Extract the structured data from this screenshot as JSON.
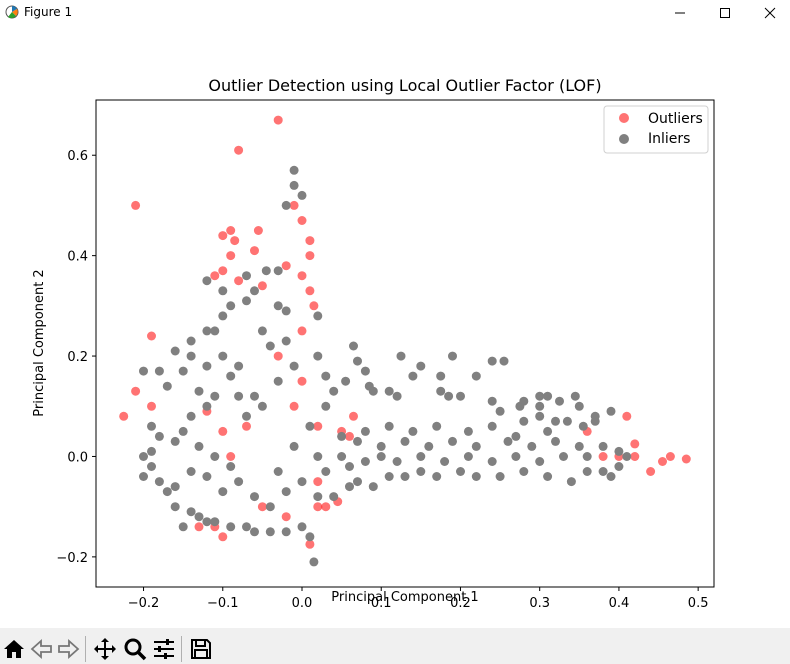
{
  "window": {
    "title": "Figure 1"
  },
  "toolbar": {
    "tools": [
      "home-icon",
      "back-icon",
      "forward-icon",
      "pan-icon",
      "zoom-icon",
      "configure-subplots-icon",
      "save-icon"
    ]
  },
  "colors": {
    "outliers": "#ff0000",
    "inliers": "#808080"
  },
  "chart_data": {
    "type": "scatter",
    "title": "Outlier Detection using Local Outlier Factor (LOF)",
    "xlabel": "Principal Component 1",
    "ylabel": "Principal Component 2",
    "xlim": [
      -0.26,
      0.52
    ],
    "ylim": [
      -0.26,
      0.71
    ],
    "xticks": [
      "−0.2",
      "−0.1",
      "0.0",
      "0.1",
      "0.2",
      "0.3",
      "0.4",
      "0.5"
    ],
    "xtick_values": [
      -0.2,
      -0.1,
      0.0,
      0.1,
      0.2,
      0.3,
      0.4,
      0.5
    ],
    "yticks": [
      "−0.2",
      "0.0",
      "0.2",
      "0.4",
      "0.6"
    ],
    "ytick_values": [
      -0.2,
      0.0,
      0.2,
      0.4,
      0.6
    ],
    "grid": false,
    "legend": {
      "placement": "top-right",
      "entries": [
        "Outliers",
        "Inliers"
      ]
    },
    "series": [
      {
        "name": "Outliers",
        "color": "#ff0000",
        "alpha": 0.55,
        "points": [
          [
            -0.03,
            0.67
          ],
          [
            -0.08,
            0.61
          ],
          [
            -0.21,
            0.5
          ],
          [
            -0.09,
            0.45
          ],
          [
            -0.1,
            0.44
          ],
          [
            -0.085,
            0.43
          ],
          [
            -0.055,
            0.45
          ],
          [
            -0.06,
            0.41
          ],
          [
            -0.09,
            0.4
          ],
          [
            -0.01,
            0.5
          ],
          [
            0.0,
            0.47
          ],
          [
            0.01,
            0.43
          ],
          [
            0.01,
            0.4
          ],
          [
            -0.1,
            0.37
          ],
          [
            -0.11,
            0.36
          ],
          [
            -0.08,
            0.35
          ],
          [
            -0.05,
            0.34
          ],
          [
            -0.02,
            0.38
          ],
          [
            0.0,
            0.36
          ],
          [
            0.01,
            0.33
          ],
          [
            0.015,
            0.3
          ],
          [
            -0.19,
            0.24
          ],
          [
            -0.21,
            0.13
          ],
          [
            -0.19,
            0.1
          ],
          [
            -0.225,
            0.08
          ],
          [
            -0.12,
            0.09
          ],
          [
            -0.07,
            0.06
          ],
          [
            0.02,
            0.06
          ],
          [
            0.06,
            0.04
          ],
          [
            0.065,
            0.08
          ],
          [
            0.41,
            0.08
          ],
          [
            0.42,
            0.025
          ],
          [
            0.42,
            0.0
          ],
          [
            0.44,
            -0.03
          ],
          [
            0.455,
            -0.01
          ],
          [
            0.465,
            0.0
          ],
          [
            0.485,
            -0.005
          ],
          [
            0.36,
            0.05
          ],
          [
            0.38,
            0.0
          ],
          [
            0.4,
            0.0
          ],
          [
            -0.11,
            -0.14
          ],
          [
            -0.13,
            -0.14
          ],
          [
            -0.1,
            -0.16
          ],
          [
            0.01,
            -0.175
          ],
          [
            0.02,
            -0.1
          ],
          [
            0.03,
            -0.1
          ],
          [
            0.045,
            -0.09
          ],
          [
            -0.02,
            -0.12
          ],
          [
            -0.05,
            -0.1
          ],
          [
            0.0,
            0.25
          ],
          [
            0.05,
            0.05
          ],
          [
            -0.1,
            0.05
          ],
          [
            -0.09,
            0.0
          ],
          [
            0.02,
            -0.05
          ],
          [
            -0.03,
            0.2
          ],
          [
            0.0,
            0.15
          ],
          [
            -0.01,
            0.1
          ]
        ]
      },
      {
        "name": "Inliers",
        "color": "#808080",
        "alpha": 1,
        "points": [
          [
            -0.01,
            0.57
          ],
          [
            -0.01,
            0.54
          ],
          [
            0.0,
            0.52
          ],
          [
            -0.02,
            0.5
          ],
          [
            -0.03,
            0.37
          ],
          [
            -0.045,
            0.37
          ],
          [
            -0.07,
            0.36
          ],
          [
            -0.1,
            0.33
          ],
          [
            -0.12,
            0.35
          ],
          [
            -0.06,
            0.33
          ],
          [
            -0.07,
            0.31
          ],
          [
            -0.09,
            0.3
          ],
          [
            -0.1,
            0.28
          ],
          [
            -0.03,
            0.3
          ],
          [
            -0.02,
            0.29
          ],
          [
            0.02,
            0.28
          ],
          [
            -0.11,
            0.25
          ],
          [
            -0.12,
            0.25
          ],
          [
            -0.14,
            0.23
          ],
          [
            -0.16,
            0.21
          ],
          [
            -0.14,
            0.2
          ],
          [
            -0.2,
            0.17
          ],
          [
            -0.18,
            0.17
          ],
          [
            -0.15,
            0.17
          ],
          [
            -0.12,
            0.18
          ],
          [
            -0.1,
            0.2
          ],
          [
            0.065,
            0.22
          ],
          [
            0.07,
            0.19
          ],
          [
            0.08,
            0.17
          ],
          [
            0.125,
            0.2
          ],
          [
            0.15,
            0.18
          ],
          [
            0.19,
            0.2
          ],
          [
            0.24,
            0.19
          ],
          [
            0.255,
            0.19
          ],
          [
            0.14,
            0.16
          ],
          [
            0.175,
            0.16
          ],
          [
            0.22,
            0.16
          ],
          [
            0.055,
            0.15
          ],
          [
            0.085,
            0.14
          ],
          [
            -0.17,
            0.14
          ],
          [
            -0.13,
            0.13
          ],
          [
            0.09,
            0.13
          ],
          [
            0.11,
            0.13
          ],
          [
            0.12,
            0.12
          ],
          [
            0.175,
            0.13
          ],
          [
            0.185,
            0.12
          ],
          [
            0.2,
            0.12
          ],
          [
            0.24,
            0.11
          ],
          [
            0.25,
            0.09
          ],
          [
            0.3,
            0.12
          ],
          [
            0.31,
            0.12
          ],
          [
            0.345,
            0.12
          ],
          [
            0.28,
            0.11
          ],
          [
            0.275,
            0.1
          ],
          [
            0.3,
            0.1
          ],
          [
            0.325,
            0.11
          ],
          [
            0.35,
            0.1
          ],
          [
            0.39,
            0.09
          ],
          [
            0.37,
            0.08
          ],
          [
            0.37,
            0.07
          ],
          [
            0.28,
            0.07
          ],
          [
            0.3,
            0.08
          ],
          [
            0.31,
            0.05
          ],
          [
            0.32,
            0.07
          ],
          [
            0.335,
            0.07
          ],
          [
            0.355,
            0.06
          ],
          [
            -0.19,
            0.06
          ],
          [
            -0.18,
            0.04
          ],
          [
            -0.19,
            0.01
          ],
          [
            -0.2,
            0.0
          ],
          [
            -0.19,
            -0.02
          ],
          [
            -0.2,
            -0.04
          ],
          [
            -0.18,
            -0.05
          ],
          [
            -0.16,
            -0.06
          ],
          [
            -0.17,
            -0.07
          ],
          [
            -0.16,
            -0.1
          ],
          [
            -0.14,
            -0.11
          ],
          [
            -0.15,
            -0.14
          ],
          [
            -0.13,
            -0.12
          ],
          [
            -0.12,
            -0.13
          ],
          [
            -0.11,
            -0.13
          ],
          [
            -0.09,
            -0.14
          ],
          [
            -0.07,
            -0.14
          ],
          [
            -0.06,
            -0.15
          ],
          [
            -0.04,
            -0.15
          ],
          [
            -0.02,
            -0.15
          ],
          [
            0.0,
            -0.14
          ],
          [
            0.01,
            -0.16
          ],
          [
            0.015,
            -0.21
          ],
          [
            0.02,
            -0.08
          ],
          [
            0.04,
            -0.08
          ],
          [
            0.06,
            -0.06
          ],
          [
            0.07,
            -0.05
          ],
          [
            0.09,
            -0.06
          ],
          [
            0.11,
            -0.04
          ],
          [
            0.13,
            -0.04
          ],
          [
            0.15,
            -0.03
          ],
          [
            0.17,
            -0.04
          ],
          [
            0.2,
            -0.03
          ],
          [
            0.22,
            -0.04
          ],
          [
            0.25,
            -0.04
          ],
          [
            0.28,
            -0.03
          ],
          [
            0.31,
            -0.04
          ],
          [
            0.34,
            -0.05
          ],
          [
            0.36,
            -0.03
          ],
          [
            0.38,
            -0.03
          ],
          [
            0.39,
            -0.04
          ],
          [
            0.4,
            -0.02
          ],
          [
            0.41,
            0.0
          ],
          [
            0.4,
            0.01
          ],
          [
            0.38,
            0.02
          ],
          [
            0.35,
            0.02
          ],
          [
            0.32,
            0.03
          ],
          [
            0.29,
            0.02
          ],
          [
            0.26,
            0.03
          ],
          [
            0.22,
            0.02
          ],
          [
            0.19,
            0.03
          ],
          [
            0.16,
            0.02
          ],
          [
            0.13,
            0.03
          ],
          [
            0.1,
            0.02
          ],
          [
            0.07,
            0.03
          ],
          [
            0.05,
            0.04
          ],
          [
            0.08,
            0.05
          ],
          [
            0.11,
            0.06
          ],
          [
            0.14,
            0.05
          ],
          [
            0.17,
            0.06
          ],
          [
            0.21,
            0.05
          ],
          [
            0.24,
            0.06
          ],
          [
            0.27,
            0.04
          ],
          [
            0.1,
            0.0
          ],
          [
            0.12,
            -0.01
          ],
          [
            0.15,
            0.0
          ],
          [
            0.18,
            -0.01
          ],
          [
            0.21,
            0.0
          ],
          [
            0.24,
            -0.01
          ],
          [
            0.27,
            0.0
          ],
          [
            0.3,
            -0.01
          ],
          [
            0.33,
            0.0
          ],
          [
            0.36,
            0.0
          ],
          [
            0.05,
            0.0
          ],
          [
            0.06,
            -0.02
          ],
          [
            0.08,
            -0.01
          ],
          [
            -0.06,
            0.12
          ],
          [
            -0.05,
            0.1
          ],
          [
            -0.08,
            0.12
          ],
          [
            -0.07,
            0.08
          ],
          [
            -0.04,
            0.22
          ],
          [
            -0.05,
            0.25
          ],
          [
            -0.02,
            0.23
          ],
          [
            -0.01,
            0.18
          ],
          [
            0.02,
            0.2
          ],
          [
            0.03,
            0.16
          ],
          [
            -0.03,
            0.15
          ],
          [
            -0.08,
            0.18
          ],
          [
            -0.09,
            0.16
          ],
          [
            -0.11,
            0.12
          ],
          [
            -0.12,
            0.1
          ],
          [
            -0.14,
            0.08
          ],
          [
            -0.15,
            0.05
          ],
          [
            -0.16,
            0.03
          ],
          [
            -0.13,
            0.02
          ],
          [
            -0.11,
            0.0
          ],
          [
            -0.09,
            -0.02
          ],
          [
            -0.08,
            -0.05
          ],
          [
            -0.1,
            -0.07
          ],
          [
            -0.12,
            -0.04
          ],
          [
            -0.14,
            -0.03
          ],
          [
            -0.06,
            -0.08
          ],
          [
            -0.04,
            -0.1
          ],
          [
            -0.02,
            -0.07
          ],
          [
            0.0,
            -0.05
          ],
          [
            -0.03,
            -0.03
          ],
          [
            -0.01,
            0.02
          ],
          [
            0.01,
            0.06
          ],
          [
            0.03,
            0.1
          ],
          [
            0.04,
            0.13
          ],
          [
            0.02,
            0.0
          ],
          [
            0.03,
            -0.03
          ]
        ]
      }
    ]
  }
}
